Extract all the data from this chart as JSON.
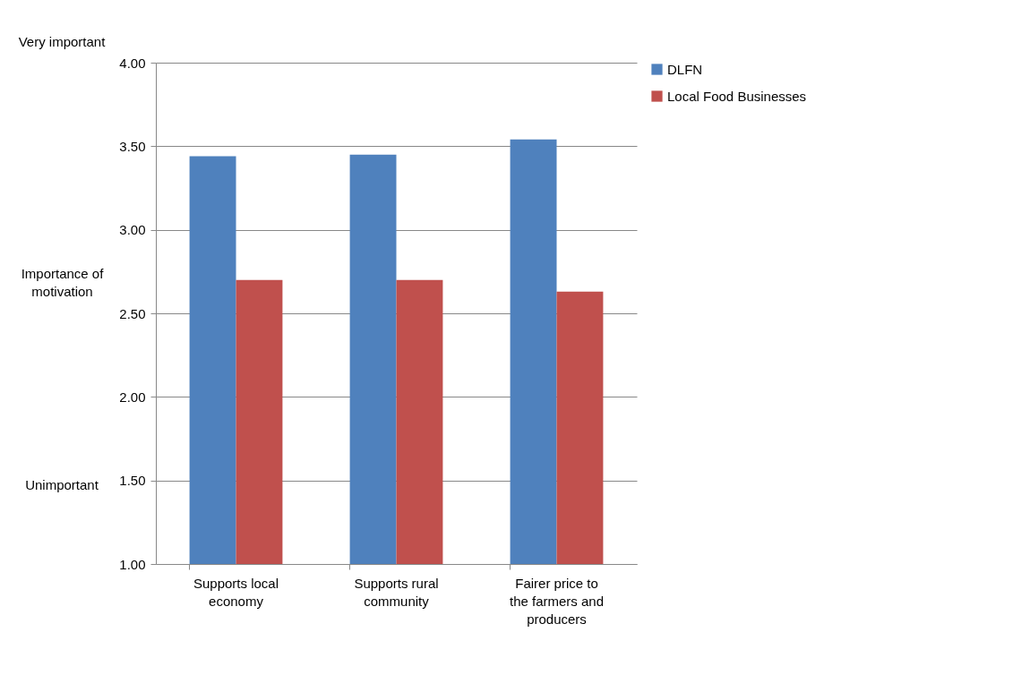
{
  "chart_data": {
    "type": "bar",
    "ylabel": "Importance of motivation",
    "annotations": [
      "Very important",
      "Unimportant"
    ],
    "categories": [
      "Supports local economy",
      "Supports rural community",
      "Fairer price to the farmers and producers"
    ],
    "series": [
      {
        "name": "DLFN",
        "color": "#4f81bd",
        "values": [
          3.44,
          3.45,
          3.54
        ]
      },
      {
        "name": "Local Food Businesses",
        "color": "#c0504d",
        "values": [
          2.7,
          2.7,
          2.63
        ]
      }
    ],
    "ylim": [
      1,
      4
    ],
    "yticks": [
      {
        "value": 1,
        "label": "1.00"
      },
      {
        "value": 1.5,
        "label": "1.50"
      },
      {
        "value": 2,
        "label": "2.00"
      },
      {
        "value": 2.5,
        "label": "2.50"
      },
      {
        "value": 3,
        "label": "3.00"
      },
      {
        "value": 3.5,
        "label": "3.50"
      },
      {
        "value": 4,
        "label": "4.00"
      }
    ],
    "grid": "y",
    "legend": "right"
  }
}
